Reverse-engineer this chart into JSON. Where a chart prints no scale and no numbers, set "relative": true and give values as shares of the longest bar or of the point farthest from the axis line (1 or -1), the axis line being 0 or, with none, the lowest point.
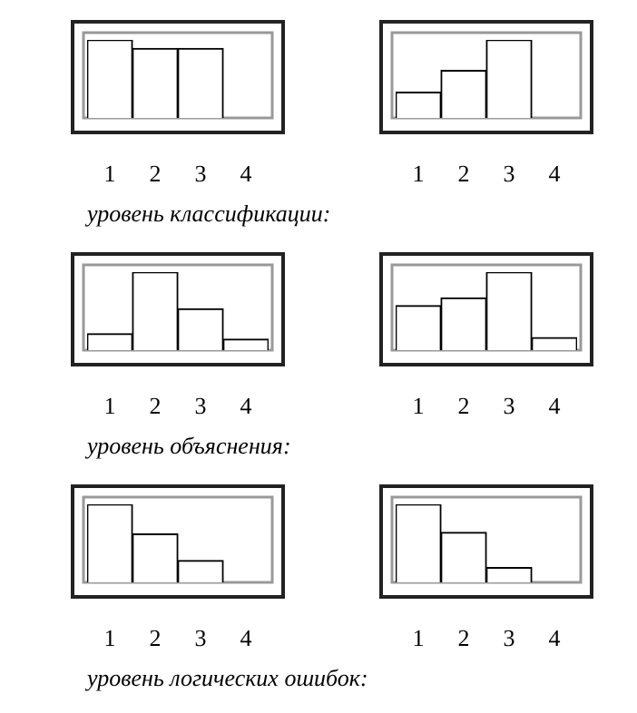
{
  "chart_data": [
    {
      "type": "bar",
      "categories": [
        "1",
        "2",
        "3",
        "4"
      ],
      "values": [
        1,
        0.89,
        0.89,
        0
      ],
      "relative": true,
      "color": "#ffffff",
      "annotations": [
        "уровень классификации:"
      ]
    },
    {
      "type": "bar",
      "categories": [
        "1",
        "2",
        "3",
        "4"
      ],
      "values": [
        0.33,
        0.61,
        1,
        0
      ],
      "relative": true,
      "color": "#ffffff"
    },
    {
      "type": "bar",
      "categories": [
        "1",
        "2",
        "3",
        "4"
      ],
      "values": [
        0.21,
        1,
        0.53,
        0.14
      ],
      "relative": true,
      "color": "#ffffff",
      "annotations": [
        "уровень объяснения:"
      ]
    },
    {
      "type": "bar",
      "categories": [
        "1",
        "2",
        "3",
        "4"
      ],
      "values": [
        0.57,
        0.67,
        1,
        0.16
      ],
      "relative": true,
      "color": "#ffffff"
    },
    {
      "type": "bar",
      "categories": [
        "1",
        "2",
        "3",
        "4"
      ],
      "values": [
        1,
        0.62,
        0.28,
        0
      ],
      "relative": true,
      "color": "#ffffff",
      "annotations": [
        "уровень логических ошибок:"
      ]
    },
    {
      "type": "bar",
      "categories": [
        "1",
        "2",
        "3",
        "4"
      ],
      "values": [
        1,
        0.64,
        0.19,
        0
      ],
      "relative": true,
      "color": "#ffffff"
    }
  ]
}
